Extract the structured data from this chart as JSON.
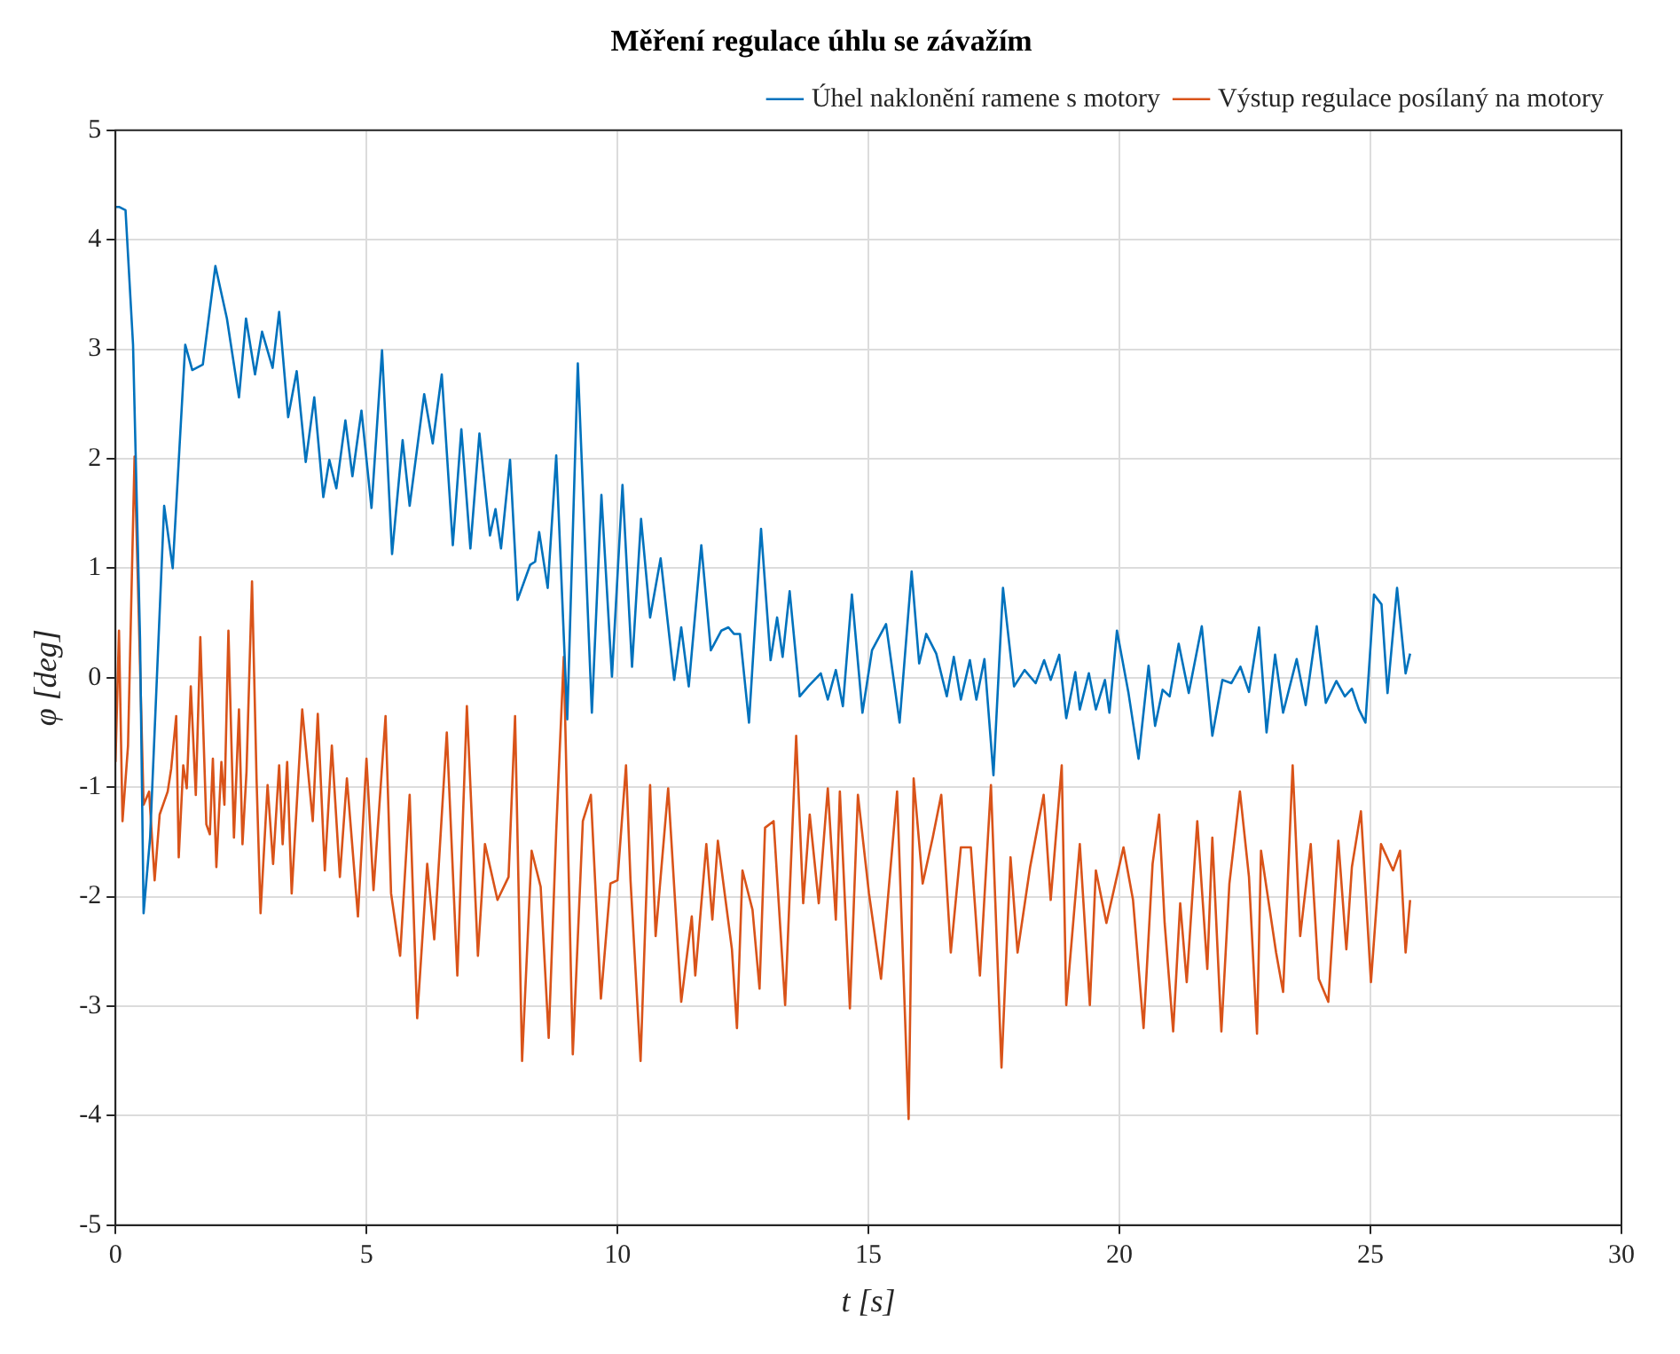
{
  "chart_data": {
    "type": "line",
    "title": "Měření regulace úhlu se závažím",
    "xlabel": "t [s]",
    "ylabel": "φ [deg]",
    "xlim": [
      0,
      30
    ],
    "xticks": [
      0,
      5,
      10,
      15,
      20,
      25,
      30
    ],
    "ylim": [
      -5,
      5
    ],
    "yticks": [
      -5,
      -4,
      -3,
      -2,
      -1,
      0,
      1,
      2,
      3,
      4,
      5
    ],
    "grid": true,
    "legend": "top right",
    "marker": "none",
    "line_style": "solid",
    "series": [
      {
        "name": "Úhel naklonění ramene s motory",
        "color": "#0072bd",
        "x": [
          0,
          0.07,
          0.2,
          0.35,
          0.49,
          0.56,
          0.69,
          0.97,
          1.14,
          1.39,
          1.53,
          1.74,
          1.99,
          2.22,
          2.46,
          2.6,
          2.78,
          2.92,
          3.13,
          3.26,
          3.44,
          3.61,
          3.79,
          3.96,
          4.14,
          4.26,
          4.4,
          4.58,
          4.72,
          4.9,
          5.1,
          5.31,
          5.51,
          5.72,
          5.86,
          6.15,
          6.32,
          6.5,
          6.72,
          6.89,
          7.07,
          7.25,
          7.46,
          7.57,
          7.68,
          7.86,
          8.01,
          8.26,
          8.36,
          8.44,
          8.61,
          8.78,
          9.0,
          9.21,
          9.49,
          9.68,
          9.89,
          10.1,
          10.29,
          10.47,
          10.65,
          10.86,
          11.13,
          11.27,
          11.42,
          11.67,
          11.86,
          12.07,
          12.21,
          12.32,
          12.44,
          12.62,
          12.86,
          13.05,
          13.18,
          13.29,
          13.43,
          13.63,
          13.8,
          14.05,
          14.19,
          14.35,
          14.49,
          14.67,
          14.88,
          15.07,
          15.35,
          15.62,
          15.86,
          16.01,
          16.15,
          16.35,
          16.56,
          16.7,
          16.84,
          17.02,
          17.15,
          17.31,
          17.49,
          17.68,
          17.9,
          18.11,
          18.33,
          18.5,
          18.63,
          18.8,
          18.94,
          19.12,
          19.21,
          19.39,
          19.53,
          19.71,
          19.8,
          19.95,
          20.18,
          20.38,
          20.58,
          20.71,
          20.86,
          21.0,
          21.18,
          21.38,
          21.64,
          21.85,
          22.05,
          22.23,
          22.41,
          22.58,
          22.78,
          22.93,
          23.1,
          23.26,
          23.53,
          23.71,
          23.93,
          24.11,
          24.32,
          24.49,
          24.63,
          24.77,
          24.9,
          25.07,
          25.22,
          25.34,
          25.53,
          25.7,
          25.79
        ],
        "values": [
          4.3,
          4.3,
          4.27,
          3.04,
          0.34,
          -2.15,
          -1.46,
          1.57,
          1.0,
          3.04,
          2.81,
          2.86,
          3.76,
          3.28,
          2.56,
          3.28,
          2.77,
          3.16,
          2.83,
          3.34,
          2.38,
          2.8,
          1.97,
          2.56,
          1.65,
          1.99,
          1.73,
          2.35,
          1.84,
          2.44,
          1.55,
          2.99,
          1.13,
          2.17,
          1.57,
          2.59,
          2.14,
          2.77,
          1.21,
          2.27,
          1.18,
          2.23,
          1.3,
          1.54,
          1.18,
          1.99,
          0.71,
          1.03,
          1.06,
          1.33,
          0.82,
          2.03,
          -0.38,
          2.87,
          -0.32,
          1.67,
          0.01,
          1.76,
          0.1,
          1.45,
          0.55,
          1.09,
          -0.02,
          0.46,
          -0.08,
          1.21,
          0.25,
          0.43,
          0.46,
          0.4,
          0.4,
          -0.41,
          1.36,
          0.16,
          0.55,
          0.19,
          0.79,
          -0.17,
          -0.08,
          0.04,
          -0.2,
          0.07,
          -0.26,
          0.76,
          -0.32,
          0.25,
          0.49,
          -0.41,
          0.97,
          0.13,
          0.4,
          0.22,
          -0.17,
          0.19,
          -0.2,
          0.16,
          -0.2,
          0.17,
          -0.89,
          0.82,
          -0.08,
          0.07,
          -0.05,
          0.16,
          -0.02,
          0.21,
          -0.37,
          0.05,
          -0.29,
          0.04,
          -0.29,
          -0.02,
          -0.32,
          0.43,
          -0.14,
          -0.74,
          0.11,
          -0.44,
          -0.11,
          -0.17,
          0.31,
          -0.14,
          0.47,
          -0.53,
          -0.02,
          -0.05,
          0.1,
          -0.13,
          0.46,
          -0.5,
          0.21,
          -0.32,
          0.17,
          -0.25,
          0.47,
          -0.23,
          -0.03,
          -0.17,
          -0.1,
          -0.29,
          -0.41,
          0.76,
          0.67,
          -0.14,
          0.82,
          0.04,
          0.22
        ]
      },
      {
        "name": "Výstup regulace posílaný na motory",
        "color": "#d95319",
        "x": [
          0,
          0.07,
          0.14,
          0.25,
          0.38,
          0.47,
          0.56,
          0.67,
          0.78,
          0.88,
          1.04,
          1.11,
          1.21,
          1.26,
          1.35,
          1.42,
          1.5,
          1.6,
          1.69,
          1.81,
          1.88,
          1.94,
          2.01,
          2.11,
          2.17,
          2.25,
          2.36,
          2.46,
          2.53,
          2.61,
          2.72,
          2.81,
          2.89,
          3.03,
          3.14,
          3.26,
          3.33,
          3.42,
          3.51,
          3.72,
          3.93,
          4.03,
          4.17,
          4.31,
          4.47,
          4.61,
          4.83,
          5.0,
          5.14,
          5.38,
          5.49,
          5.67,
          5.86,
          6.01,
          6.21,
          6.35,
          6.6,
          6.81,
          7.0,
          7.22,
          7.36,
          7.61,
          7.83,
          7.96,
          8.1,
          8.29,
          8.47,
          8.63,
          8.78,
          8.93,
          9.11,
          9.31,
          9.47,
          9.67,
          9.86,
          10.0,
          10.17,
          10.26,
          10.46,
          10.65,
          10.76,
          11.01,
          11.27,
          11.48,
          11.55,
          11.77,
          11.89,
          12.0,
          12.28,
          12.38,
          12.49,
          12.69,
          12.83,
          12.94,
          13.11,
          13.34,
          13.56,
          13.7,
          13.83,
          14.01,
          14.19,
          14.35,
          14.43,
          14.63,
          14.79,
          15.01,
          15.25,
          15.57,
          15.8,
          15.9,
          16.08,
          16.28,
          16.45,
          16.64,
          16.84,
          17.04,
          17.22,
          17.44,
          17.65,
          17.83,
          17.97,
          18.22,
          18.49,
          18.63,
          18.85,
          18.94,
          19.21,
          19.41,
          19.53,
          19.74,
          20.08,
          20.27,
          20.48,
          20.66,
          20.79,
          20.9,
          21.07,
          21.21,
          21.34,
          21.55,
          21.75,
          21.85,
          22.03,
          22.19,
          22.4,
          22.58,
          22.74,
          22.82,
          23.12,
          23.26,
          23.45,
          23.6,
          23.81,
          23.97,
          24.16,
          24.36,
          24.52,
          24.63,
          24.81,
          25.01,
          25.21,
          25.45,
          25.59,
          25.7,
          25.79
        ],
        "values": [
          -0.77,
          0.43,
          -1.31,
          -0.62,
          2.02,
          0.46,
          -1.16,
          -1.04,
          -1.85,
          -1.25,
          -1.04,
          -0.83,
          -0.35,
          -1.64,
          -0.8,
          -1.01,
          -0.08,
          -1.07,
          0.37,
          -1.34,
          -1.43,
          -0.74,
          -1.73,
          -0.77,
          -1.16,
          0.43,
          -1.46,
          -0.29,
          -1.52,
          -0.86,
          0.88,
          -0.92,
          -2.15,
          -0.98,
          -1.7,
          -0.8,
          -1.52,
          -0.77,
          -1.97,
          -0.29,
          -1.31,
          -0.33,
          -1.76,
          -0.62,
          -1.82,
          -0.92,
          -2.18,
          -0.74,
          -1.94,
          -0.35,
          -1.97,
          -2.54,
          -1.07,
          -3.11,
          -1.7,
          -2.39,
          -0.5,
          -2.72,
          -0.26,
          -2.54,
          -1.52,
          -2.03,
          -1.82,
          -0.35,
          -3.5,
          -1.58,
          -1.91,
          -3.29,
          -1.4,
          0.19,
          -3.44,
          -1.31,
          -1.07,
          -2.93,
          -1.88,
          -1.85,
          -0.8,
          -1.85,
          -3.5,
          -0.98,
          -2.36,
          -1.01,
          -2.96,
          -2.18,
          -2.72,
          -1.52,
          -2.21,
          -1.49,
          -2.48,
          -3.2,
          -1.76,
          -2.12,
          -2.84,
          -1.37,
          -1.31,
          -2.99,
          -0.53,
          -2.06,
          -1.25,
          -2.06,
          -1.01,
          -2.21,
          -1.04,
          -3.02,
          -1.07,
          -1.97,
          -2.75,
          -1.04,
          -4.03,
          -0.92,
          -1.88,
          -1.46,
          -1.07,
          -2.51,
          -1.55,
          -1.55,
          -2.72,
          -0.98,
          -3.56,
          -1.64,
          -2.51,
          -1.73,
          -1.07,
          -2.03,
          -0.8,
          -2.99,
          -1.52,
          -2.99,
          -1.76,
          -2.24,
          -1.55,
          -2.03,
          -3.2,
          -1.7,
          -1.25,
          -2.24,
          -3.23,
          -2.06,
          -2.78,
          -1.31,
          -2.66,
          -1.46,
          -3.23,
          -1.88,
          -1.04,
          -1.82,
          -3.25,
          -1.58,
          -2.51,
          -2.87,
          -0.8,
          -2.36,
          -1.52,
          -2.75,
          -2.96,
          -1.49,
          -2.48,
          -1.73,
          -1.22,
          -2.78,
          -1.52,
          -1.76,
          -1.58,
          -2.51,
          -2.03
        ]
      }
    ]
  }
}
